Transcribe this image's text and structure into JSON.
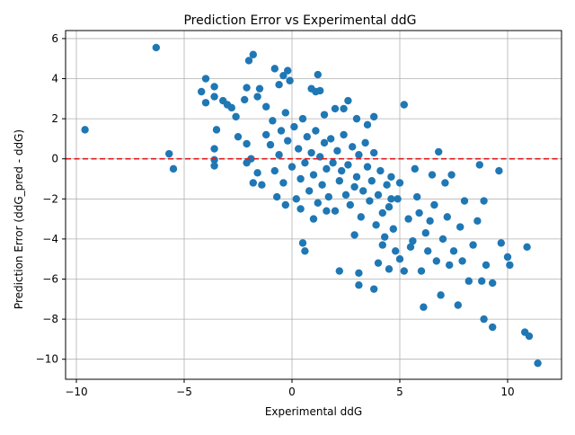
{
  "chart_data": {
    "type": "scatter",
    "title": "Prediction Error vs Experimental ddG",
    "xlabel": "Experimental ddG",
    "ylabel": "Prediction Error (ddG_pred - ddG)",
    "xlim": [
      -10.5,
      12.5
    ],
    "ylim": [
      -11.0,
      6.4
    ],
    "xticks": [
      -10,
      -5,
      0,
      5,
      10
    ],
    "yticks": [
      -10,
      -8,
      -6,
      -4,
      -2,
      0,
      2,
      4,
      6
    ],
    "grid": true,
    "legend": "none",
    "colors": {
      "points": "#1f77b4",
      "reference_line": "#e31a1c"
    },
    "reference_line": {
      "y": 0,
      "style": "dashed"
    },
    "series": [
      {
        "points": [
          [
            -9.6,
            1.45
          ],
          [
            -6.3,
            5.55
          ],
          [
            -5.7,
            0.25
          ],
          [
            -5.5,
            -0.5
          ],
          [
            -4.2,
            3.35
          ],
          [
            -4.0,
            4.0
          ],
          [
            -4.0,
            2.8
          ],
          [
            -3.6,
            3.6
          ],
          [
            -3.6,
            3.1
          ],
          [
            -3.5,
            1.45
          ],
          [
            -3.6,
            0.5
          ],
          [
            -3.6,
            -0.05
          ],
          [
            -3.6,
            -0.35
          ],
          [
            -3.2,
            2.9
          ],
          [
            -3.0,
            2.7
          ],
          [
            -2.8,
            2.55
          ],
          [
            -2.6,
            2.1
          ],
          [
            -2.5,
            1.1
          ],
          [
            -2.2,
            2.95
          ],
          [
            -2.1,
            3.55
          ],
          [
            -2.0,
            4.9
          ],
          [
            -1.8,
            5.2
          ],
          [
            -2.1,
            0.75
          ],
          [
            -2.1,
            -0.2
          ],
          [
            -1.8,
            -1.2
          ],
          [
            -1.5,
            3.5
          ],
          [
            -1.6,
            3.1
          ],
          [
            -1.4,
            -1.3
          ],
          [
            -1.2,
            2.6
          ],
          [
            -0.8,
            4.5
          ],
          [
            -0.6,
            3.7
          ],
          [
            -0.4,
            4.15
          ],
          [
            -0.2,
            4.4
          ],
          [
            -0.1,
            3.9
          ],
          [
            0.9,
            3.5
          ],
          [
            1.1,
            3.35
          ],
          [
            1.2,
            4.2
          ],
          [
            1.3,
            3.4
          ],
          [
            1.5,
            2.2
          ],
          [
            2.0,
            2.5
          ],
          [
            2.4,
            2.5
          ],
          [
            2.6,
            2.9
          ],
          [
            3.0,
            2.0
          ],
          [
            3.5,
            1.7
          ],
          [
            3.8,
            2.1
          ],
          [
            -1.2,
            1.2
          ],
          [
            -1.0,
            0.7
          ],
          [
            -0.9,
            1.9
          ],
          [
            -0.8,
            -0.6
          ],
          [
            -0.6,
            0.2
          ],
          [
            -0.5,
            1.4
          ],
          [
            -0.4,
            -1.2
          ],
          [
            -0.3,
            2.3
          ],
          [
            -0.2,
            0.9
          ],
          [
            0.0,
            -0.4
          ],
          [
            0.1,
            1.6
          ],
          [
            0.2,
            -2.0
          ],
          [
            0.3,
            0.5
          ],
          [
            0.4,
            -1.0
          ],
          [
            0.5,
            2.0
          ],
          [
            0.6,
            -0.2
          ],
          [
            0.7,
            1.1
          ],
          [
            0.8,
            -1.6
          ],
          [
            0.9,
            0.3
          ],
          [
            1.0,
            -0.8
          ],
          [
            1.1,
            1.4
          ],
          [
            1.2,
            -2.2
          ],
          [
            1.3,
            0.1
          ],
          [
            1.4,
            -1.3
          ],
          [
            1.5,
            0.8
          ],
          [
            1.6,
            -0.5
          ],
          [
            1.7,
            -1.9
          ],
          [
            1.8,
            1.0
          ],
          [
            1.9,
            -0.2
          ],
          [
            2.0,
            -2.6
          ],
          [
            2.1,
            0.4
          ],
          [
            2.2,
            -1.1
          ],
          [
            2.3,
            -0.6
          ],
          [
            2.4,
            1.2
          ],
          [
            2.5,
            -1.8
          ],
          [
            2.6,
            -0.3
          ],
          [
            2.7,
            -2.3
          ],
          [
            2.8,
            0.6
          ],
          [
            2.9,
            -1.4
          ],
          [
            3.0,
            -0.9
          ],
          [
            3.1,
            0.2
          ],
          [
            3.2,
            -2.9
          ],
          [
            3.3,
            -1.6
          ],
          [
            3.4,
            0.8
          ],
          [
            3.5,
            -0.4
          ],
          [
            3.6,
            -2.1
          ],
          [
            3.7,
            -1.1
          ],
          [
            3.8,
            0.3
          ],
          [
            3.9,
            -3.3
          ],
          [
            4.0,
            -1.8
          ],
          [
            4.1,
            -0.6
          ],
          [
            4.2,
            -2.7
          ],
          [
            4.3,
            -3.9
          ],
          [
            4.4,
            -1.3
          ],
          [
            4.5,
            -2.4
          ],
          [
            4.6,
            -0.9
          ],
          [
            4.7,
            -3.5
          ],
          [
            4.8,
            -4.6
          ],
          [
            4.9,
            -2.0
          ],
          [
            5.0,
            -1.2
          ],
          [
            2.2,
            -5.6
          ],
          [
            3.1,
            -5.7
          ],
          [
            3.1,
            -6.3
          ],
          [
            3.8,
            -6.5
          ],
          [
            4.0,
            -5.2
          ],
          [
            4.2,
            -4.3
          ],
          [
            4.5,
            -5.5
          ],
          [
            5.0,
            -5.0
          ],
          [
            5.2,
            2.7
          ],
          [
            5.2,
            -5.6
          ],
          [
            5.4,
            -3.0
          ],
          [
            5.5,
            -4.4
          ],
          [
            5.7,
            -0.5
          ],
          [
            5.8,
            -1.9
          ],
          [
            5.9,
            -2.7
          ],
          [
            6.0,
            -5.6
          ],
          [
            6.1,
            -7.4
          ],
          [
            6.2,
            -3.7
          ],
          [
            6.3,
            -4.6
          ],
          [
            6.5,
            -0.8
          ],
          [
            6.6,
            -2.3
          ],
          [
            6.7,
            -5.1
          ],
          [
            6.8,
            0.35
          ],
          [
            6.9,
            -6.8
          ],
          [
            7.0,
            -4.0
          ],
          [
            7.1,
            -1.2
          ],
          [
            7.2,
            -2.9
          ],
          [
            7.3,
            -5.3
          ],
          [
            7.4,
            -0.8
          ],
          [
            7.5,
            -4.6
          ],
          [
            7.7,
            -7.3
          ],
          [
            7.8,
            -3.4
          ],
          [
            7.9,
            -5.1
          ],
          [
            8.0,
            -2.1
          ],
          [
            8.2,
            -6.1
          ],
          [
            8.4,
            -4.3
          ],
          [
            8.6,
            -3.1
          ],
          [
            8.7,
            -0.3
          ],
          [
            8.8,
            -6.1
          ],
          [
            8.9,
            -8.0
          ],
          [
            8.9,
            -2.1
          ],
          [
            9.0,
            -5.3
          ],
          [
            9.3,
            -6.2
          ],
          [
            9.3,
            -8.4
          ],
          [
            9.6,
            -0.6
          ],
          [
            9.7,
            -4.2
          ],
          [
            10.0,
            -4.9
          ],
          [
            10.1,
            -5.3
          ],
          [
            10.8,
            -8.65
          ],
          [
            11.0,
            -8.85
          ],
          [
            11.4,
            -10.2
          ],
          [
            10.9,
            -4.4
          ],
          [
            6.4,
            -3.1
          ],
          [
            5.6,
            -4.1
          ],
          [
            4.6,
            -2.0
          ],
          [
            0.5,
            -4.2
          ],
          [
            0.4,
            -2.5
          ],
          [
            -0.3,
            -2.3
          ],
          [
            1.0,
            -3.0
          ],
          [
            1.6,
            -2.6
          ],
          [
            2.9,
            -3.8
          ],
          [
            -0.7,
            -1.9
          ],
          [
            -1.6,
            -0.7
          ],
          [
            -1.9,
            0.0
          ],
          [
            0.6,
            -4.6
          ]
        ]
      }
    ]
  }
}
